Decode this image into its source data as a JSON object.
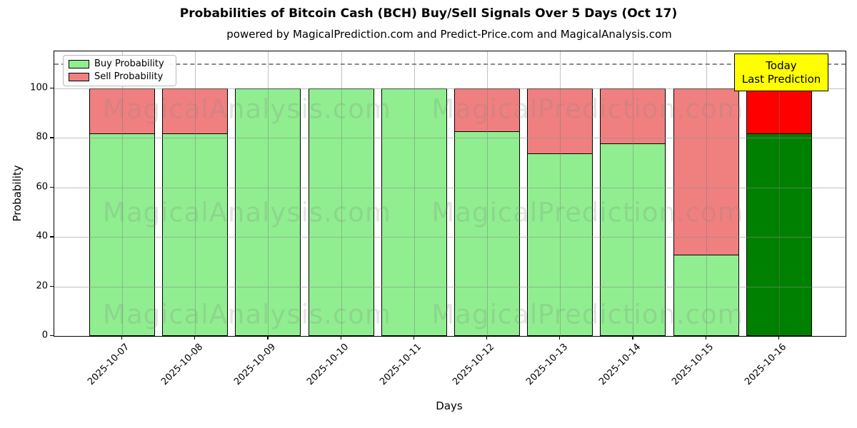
{
  "title": "Probabilities of Bitcoin Cash (BCH) Buy/Sell Signals Over 5 Days (Oct 17)",
  "subtitle": "powered by MagicalPrediction.com and Predict-Price.com and MagicalAnalysis.com",
  "axes": {
    "xlabel": "Days",
    "ylabel": "Probability",
    "yticks": [
      0,
      20,
      40,
      60,
      80,
      100
    ],
    "ylim": [
      0,
      115
    ],
    "dashed_line_y": 110
  },
  "legend": {
    "items": [
      {
        "label": "Buy Probability",
        "color": "#90EE90"
      },
      {
        "label": "Sell Probability",
        "color": "#F08080"
      }
    ]
  },
  "today_label": {
    "line1": "Today",
    "line2": "Last Prediction",
    "bg_color": "#FFFF00"
  },
  "watermarks": {
    "texts": [
      "MagicalAnalysis.com",
      "MagicalPrediction.com"
    ]
  },
  "chart_data": {
    "type": "bar",
    "stacked": true,
    "title": "Probabilities of Bitcoin Cash (BCH) Buy/Sell Signals Over 5 Days (Oct 17)",
    "xlabel": "Days",
    "ylabel": "Probability",
    "ylim": [
      0,
      115
    ],
    "grid": true,
    "legend_position": "upper left",
    "annotation_line": 110,
    "categories": [
      "2025-10-07",
      "2025-10-08",
      "2025-10-09",
      "2025-10-10",
      "2025-10-11",
      "2025-10-12",
      "2025-10-13",
      "2025-10-14",
      "2025-10-15",
      "2025-10-16"
    ],
    "series": [
      {
        "name": "Buy Probability",
        "color": "#90EE90",
        "values": [
          82,
          82,
          100,
          100,
          100,
          83,
          74,
          78,
          33,
          82
        ]
      },
      {
        "name": "Sell Probability",
        "color": "#F08080",
        "values": [
          18,
          18,
          0,
          0,
          0,
          17,
          26,
          22,
          67,
          18
        ]
      }
    ],
    "today_index": 9,
    "today_colors": {
      "buy": "#008000",
      "sell": "#FF0000"
    }
  }
}
